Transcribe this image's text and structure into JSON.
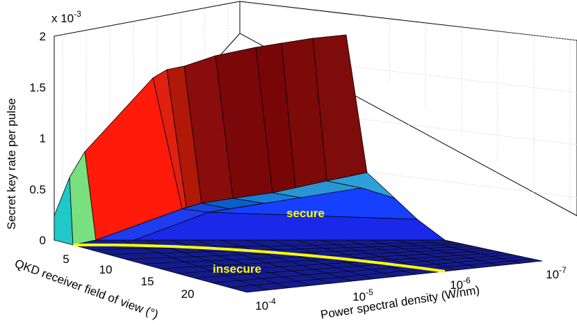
{
  "chart_data": {
    "type": "surface3d",
    "zlabel": "Secret key rate per pulse",
    "zscale_label": "x 10",
    "zscale_exp": "-3",
    "z_ticks": [
      "0",
      "0.5",
      "1",
      "1.5",
      "2"
    ],
    "zlim": [
      0,
      0.002
    ],
    "xlabel": "Power spectral density (W/nm)",
    "x_ticks": [
      {
        "base": "10",
        "exp": "-4"
      },
      {
        "base": "10",
        "exp": "-5"
      },
      {
        "base": "10",
        "exp": "-6"
      },
      {
        "base": "10",
        "exp": "-7"
      }
    ],
    "x_scale": "log",
    "ylabel": "QKD receiver field of view (°)",
    "y_ticks": [
      "5",
      "10",
      "15",
      "20"
    ],
    "grid": true,
    "colormap": "jet",
    "secure_boundary_color": "#ffff00",
    "annotations": {
      "secure": "secure",
      "insecure": "insecure"
    },
    "series": [
      {
        "fov_deg": 2,
        "z_vs_psd": {
          "1e-4": 0.0,
          "1e-5": 0.00012,
          "1e-6": 0.00022,
          "1e-7": 0.00022
        }
      },
      {
        "fov_deg": 3,
        "z_vs_psd": {
          "1e-4": 0.0,
          "1e-5": 0.0009,
          "1e-6": 0.0017,
          "1e-7": 0.0019
        }
      },
      {
        "fov_deg": 5,
        "z_vs_psd": {
          "1e-4": 0.0,
          "1e-5": 5e-05,
          "1e-6": 0.00045,
          "1e-7": 0.00048
        }
      },
      {
        "fov_deg": 10,
        "z_vs_psd": {
          "1e-4": 0.0,
          "1e-5": 2e-05,
          "1e-6": 0.00012,
          "1e-7": 0.00014
        }
      },
      {
        "fov_deg": 20,
        "z_vs_psd": {
          "1e-4": 0.0,
          "1e-5": 0.0,
          "1e-6": 3e-05,
          "1e-7": 4e-05
        }
      }
    ]
  }
}
